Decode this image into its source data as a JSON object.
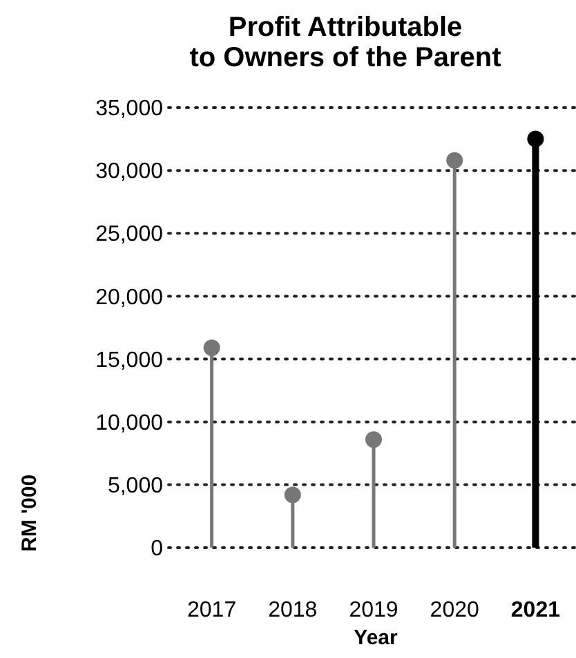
{
  "chart_data": {
    "type": "lollipop",
    "title": "Profit Attributable\nto Owners of the Parent",
    "xlabel": "Year",
    "ylabel": "RM '000",
    "categories": [
      "2017",
      "2018",
      "2019",
      "2020",
      "2021"
    ],
    "values": [
      15900,
      4200,
      8600,
      30800,
      32500
    ],
    "colors": [
      "#777777",
      "#777777",
      "#777777",
      "#777777",
      "#000000"
    ],
    "ylim": [
      0,
      35000
    ],
    "yticks": [
      {
        "value": 0,
        "label": "0"
      },
      {
        "value": 5000,
        "label": "5,000"
      },
      {
        "value": 10000,
        "label": "10,000"
      },
      {
        "value": 15000,
        "label": "15,000"
      },
      {
        "value": 20000,
        "label": "20,000"
      },
      {
        "value": 25000,
        "label": "25,000"
      },
      {
        "value": 30000,
        "label": "30,000"
      },
      {
        "value": 35000,
        "label": "35,000"
      }
    ],
    "grid": "y",
    "line_style": "dotted",
    "marker": "circle"
  }
}
